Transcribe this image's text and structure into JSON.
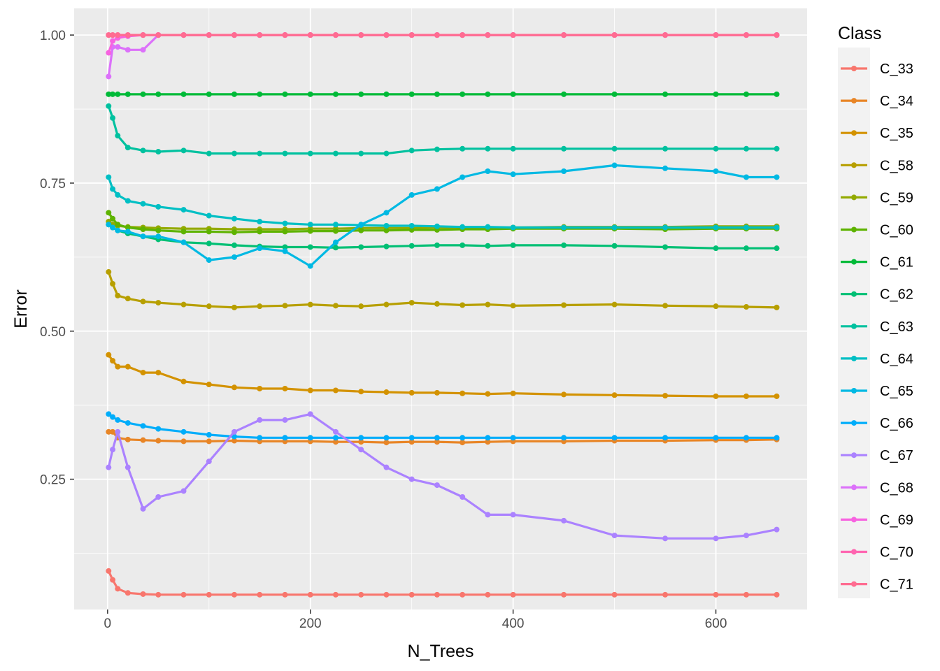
{
  "chart_data": {
    "type": "line",
    "xlabel": "N_Trees",
    "ylabel": "Error",
    "xlim": [
      -33,
      690
    ],
    "ylim": [
      0.03,
      1.045
    ],
    "x_ticks": [
      0,
      200,
      400,
      600
    ],
    "x_tick_labels": [
      "0",
      "200",
      "400",
      "600"
    ],
    "y_ticks": [
      0.25,
      0.5,
      0.75,
      1.0
    ],
    "y_tick_labels": [
      "0.25",
      "0.50",
      "0.75",
      "1.00"
    ],
    "grid": true,
    "legend_title": "Class",
    "legend_position": "right",
    "x": [
      1,
      5,
      10,
      20,
      35,
      50,
      75,
      100,
      125,
      150,
      175,
      200,
      225,
      250,
      275,
      300,
      325,
      350,
      375,
      400,
      450,
      500,
      550,
      600,
      630,
      660
    ],
    "series": [
      {
        "name": "C_33",
        "color": "#F8766D",
        "values": [
          0.095,
          0.08,
          0.065,
          0.058,
          0.056,
          0.055,
          0.055,
          0.055,
          0.055,
          0.055,
          0.055,
          0.055,
          0.055,
          0.055,
          0.055,
          0.055,
          0.055,
          0.055,
          0.055,
          0.055,
          0.055,
          0.055,
          0.055,
          0.055,
          0.055,
          0.055
        ]
      },
      {
        "name": "C_34",
        "color": "#E88526",
        "values": [
          0.33,
          0.33,
          0.32,
          0.317,
          0.316,
          0.315,
          0.314,
          0.314,
          0.315,
          0.314,
          0.314,
          0.314,
          0.313,
          0.313,
          0.312,
          0.313,
          0.313,
          0.312,
          0.313,
          0.314,
          0.314,
          0.315,
          0.315,
          0.316,
          0.316,
          0.317
        ]
      },
      {
        "name": "C_35",
        "color": "#D39200",
        "values": [
          0.46,
          0.45,
          0.44,
          0.44,
          0.43,
          0.43,
          0.415,
          0.41,
          0.405,
          0.403,
          0.403,
          0.4,
          0.4,
          0.398,
          0.397,
          0.396,
          0.396,
          0.395,
          0.394,
          0.395,
          0.393,
          0.392,
          0.391,
          0.39,
          0.39,
          0.39
        ]
      },
      {
        "name": "C_58",
        "color": "#B79F00",
        "values": [
          0.6,
          0.58,
          0.56,
          0.555,
          0.55,
          0.548,
          0.545,
          0.542,
          0.54,
          0.542,
          0.543,
          0.545,
          0.543,
          0.542,
          0.545,
          0.548,
          0.546,
          0.544,
          0.545,
          0.543,
          0.544,
          0.545,
          0.543,
          0.542,
          0.541,
          0.54
        ]
      },
      {
        "name": "C_59",
        "color": "#93AA00",
        "values": [
          0.685,
          0.68,
          0.678,
          0.676,
          0.675,
          0.674,
          0.673,
          0.673,
          0.672,
          0.672,
          0.672,
          0.673,
          0.673,
          0.674,
          0.674,
          0.674,
          0.675,
          0.675,
          0.675,
          0.675,
          0.676,
          0.676,
          0.676,
          0.677,
          0.677,
          0.677
        ]
      },
      {
        "name": "C_60",
        "color": "#5EB300",
        "values": [
          0.7,
          0.69,
          0.68,
          0.675,
          0.672,
          0.67,
          0.668,
          0.668,
          0.667,
          0.668,
          0.668,
          0.669,
          0.669,
          0.67,
          0.67,
          0.671,
          0.671,
          0.672,
          0.672,
          0.673,
          0.673,
          0.673,
          0.672,
          0.673,
          0.673,
          0.673
        ]
      },
      {
        "name": "C_61",
        "color": "#00BA38",
        "values": [
          0.9,
          0.9,
          0.9,
          0.9,
          0.9,
          0.9,
          0.9,
          0.9,
          0.9,
          0.9,
          0.9,
          0.9,
          0.9,
          0.9,
          0.9,
          0.9,
          0.9,
          0.9,
          0.9,
          0.9,
          0.9,
          0.9,
          0.9,
          0.9,
          0.9,
          0.9
        ]
      },
      {
        "name": "C_62",
        "color": "#00BF74",
        "values": [
          0.68,
          0.675,
          0.67,
          0.665,
          0.66,
          0.655,
          0.65,
          0.648,
          0.645,
          0.643,
          0.642,
          0.642,
          0.641,
          0.642,
          0.643,
          0.644,
          0.645,
          0.645,
          0.644,
          0.645,
          0.645,
          0.644,
          0.642,
          0.64,
          0.64,
          0.64
        ]
      },
      {
        "name": "C_63",
        "color": "#00C19F",
        "values": [
          0.88,
          0.86,
          0.83,
          0.81,
          0.805,
          0.803,
          0.805,
          0.8,
          0.8,
          0.8,
          0.8,
          0.8,
          0.8,
          0.8,
          0.8,
          0.805,
          0.807,
          0.808,
          0.808,
          0.808,
          0.808,
          0.808,
          0.808,
          0.808,
          0.808,
          0.808
        ]
      },
      {
        "name": "C_64",
        "color": "#00BFC4",
        "values": [
          0.76,
          0.74,
          0.73,
          0.72,
          0.715,
          0.71,
          0.705,
          0.695,
          0.69,
          0.685,
          0.682,
          0.68,
          0.68,
          0.679,
          0.678,
          0.678,
          0.677,
          0.676,
          0.676,
          0.675,
          0.675,
          0.675,
          0.675,
          0.675,
          0.675,
          0.675
        ]
      },
      {
        "name": "C_65",
        "color": "#00B9E3",
        "values": [
          0.68,
          0.675,
          0.67,
          0.668,
          0.66,
          0.66,
          0.65,
          0.62,
          0.625,
          0.64,
          0.635,
          0.61,
          0.65,
          0.68,
          0.7,
          0.73,
          0.74,
          0.76,
          0.77,
          0.765,
          0.77,
          0.78,
          0.775,
          0.77,
          0.76,
          0.76
        ]
      },
      {
        "name": "C_66",
        "color": "#00ADFA",
        "values": [
          0.36,
          0.355,
          0.35,
          0.345,
          0.34,
          0.335,
          0.33,
          0.325,
          0.322,
          0.32,
          0.32,
          0.32,
          0.32,
          0.32,
          0.32,
          0.32,
          0.32,
          0.32,
          0.32,
          0.32,
          0.32,
          0.32,
          0.32,
          0.32,
          0.32,
          0.32
        ]
      },
      {
        "name": "C_67",
        "color": "#AB82FF",
        "values": [
          0.27,
          0.3,
          0.33,
          0.27,
          0.2,
          0.22,
          0.23,
          0.28,
          0.33,
          0.35,
          0.35,
          0.36,
          0.33,
          0.3,
          0.27,
          0.25,
          0.24,
          0.22,
          0.19,
          0.19,
          0.18,
          0.155,
          0.15,
          0.15,
          0.155,
          0.165
        ]
      },
      {
        "name": "C_68",
        "color": "#DC71FA",
        "values": [
          0.93,
          0.98,
          0.98,
          0.975,
          0.975,
          1.0,
          1.0,
          1.0,
          1.0,
          1.0,
          1.0,
          1.0,
          1.0,
          1.0,
          1.0,
          1.0,
          1.0,
          1.0,
          1.0,
          1.0,
          1.0,
          1.0,
          1.0,
          1.0,
          1.0,
          1.0
        ]
      },
      {
        "name": "C_69",
        "color": "#F763E0",
        "values": [
          0.97,
          0.99,
          0.995,
          0.998,
          1.0,
          1.0,
          1.0,
          1.0,
          1.0,
          1.0,
          1.0,
          1.0,
          1.0,
          1.0,
          1.0,
          1.0,
          1.0,
          1.0,
          1.0,
          1.0,
          1.0,
          1.0,
          1.0,
          1.0,
          1.0,
          1.0
        ]
      },
      {
        "name": "C_70",
        "color": "#FF64B0",
        "values": [
          1.0,
          1.0,
          1.0,
          1.0,
          1.0,
          1.0,
          1.0,
          1.0,
          1.0,
          1.0,
          1.0,
          1.0,
          1.0,
          1.0,
          1.0,
          1.0,
          1.0,
          1.0,
          1.0,
          1.0,
          1.0,
          1.0,
          1.0,
          1.0,
          1.0,
          1.0
        ]
      },
      {
        "name": "C_71",
        "color": "#FF6C91",
        "values": [
          1.0,
          1.0,
          1.0,
          1.0,
          1.0,
          1.0,
          1.0,
          1.0,
          1.0,
          1.0,
          1.0,
          1.0,
          1.0,
          1.0,
          1.0,
          1.0,
          1.0,
          1.0,
          1.0,
          1.0,
          1.0,
          1.0,
          1.0,
          1.0,
          1.0,
          1.0
        ]
      }
    ]
  }
}
